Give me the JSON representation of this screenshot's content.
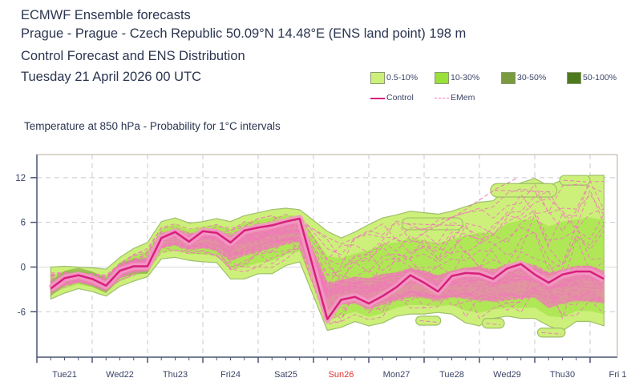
{
  "header": {
    "line1": "ECMWF Ensemble forecasts",
    "line2": "Prague - Prague - Czech Republic 50.09°N 14.48°E (ENS land point) 198 m",
    "line3": "Control Forecast and ENS Distribution",
    "line4": "Tuesday 21 April 2026 00 UTC"
  },
  "legend": {
    "bins": [
      {
        "label": "0.5-10%",
        "color": "#ccf07a"
      },
      {
        "label": "10-30%",
        "color": "#99e03a"
      },
      {
        "label": "30-50%",
        "color": "#7a9a40"
      },
      {
        "label": "50-100%",
        "color": "#4e7a1e"
      }
    ],
    "control_label": "Control",
    "control_color": "#d6217a",
    "emem_label": "EMem",
    "emem_color": "#f07ab8"
  },
  "chart_data": {
    "type": "line",
    "title": "Temperature at 850 hPa - Probability for 1°C intervals",
    "xlabel": "",
    "ylabel": "",
    "ylim": [
      -12.1,
      15.1
    ],
    "yticks": [
      12,
      6,
      0,
      -6
    ],
    "ytick_labels": [
      "12",
      "6",
      "0",
      "-6"
    ],
    "grid": true,
    "xlim_days": [
      0,
      10.35
    ],
    "day_labels": [
      "Tue21",
      "Wed22",
      "Thu23",
      "Fri24",
      "Sat25",
      "Sun26",
      "Mon27",
      "Tue28",
      "Wed29",
      "Thu30",
      "Fri 1"
    ],
    "weekend_label_color": "#e03030",
    "weekend_label_index": 5,
    "legend_position": "top-right",
    "x_hours_control": [
      0,
      6,
      12,
      18,
      24,
      30,
      36,
      42,
      48,
      54,
      60,
      66,
      72,
      78,
      84,
      90,
      96,
      102,
      108,
      120,
      126,
      132,
      138,
      144,
      150,
      156,
      162,
      168,
      174,
      180,
      186,
      192,
      198,
      204,
      210,
      216,
      222,
      228,
      234,
      240
    ],
    "series": [
      {
        "name": "Control",
        "values": [
          -2.9,
          -1.5,
          -1.1,
          -1.6,
          -2.5,
          -0.5,
          0.1,
          0.1,
          3.9,
          4.7,
          3.4,
          4.8,
          4.6,
          3.3,
          4.9,
          5.3,
          5.6,
          6.1,
          6.5,
          -7.0,
          -4.4,
          -4.0,
          -4.9,
          -3.9,
          -2.7,
          -1.1,
          -2.1,
          -3.3,
          -1.2,
          -0.8,
          -0.9,
          -1.6,
          -0.2,
          0.4,
          -1.0,
          -2.1,
          -1.0,
          -0.6,
          -0.6,
          -1.6
        ]
      },
      {
        "name": "ENS 0.5-10% envelope (min)",
        "values": [
          -4.0,
          -3.2,
          -2.6,
          -3.0,
          -3.6,
          -2.3,
          -1.6,
          -1.0,
          1.4,
          1.6,
          1.2,
          1.0,
          0.9,
          -1.3,
          -1.3,
          -0.6,
          -0.6,
          0.5,
          1.0,
          -8.2,
          -7.8,
          -7.0,
          -7.6,
          -7.2,
          -6.3,
          -6.0,
          -6.0,
          -5.8,
          -6.0,
          -7.2,
          -7.6,
          -6.6,
          -6.3,
          -6.6,
          -6.6,
          -7.6,
          -8.3,
          -7.0,
          -7.0,
          -7.6
        ]
      },
      {
        "name": "ENS 0.5-10% envelope (max)",
        "values": [
          -0.3,
          -0.2,
          -0.3,
          -0.4,
          -0.6,
          1.0,
          2.2,
          3.0,
          5.8,
          6.3,
          5.6,
          5.8,
          6.2,
          5.8,
          6.6,
          7.0,
          7.4,
          7.6,
          7.4,
          4.5,
          3.6,
          4.4,
          5.4,
          6.3,
          6.7,
          7.2,
          7.0,
          6.8,
          7.2,
          7.8,
          8.4,
          8.6,
          10.4,
          11.0,
          11.6,
          10.6,
          11.4,
          11.6,
          12.0,
          12.0
        ]
      },
      {
        "name": "ENS 50-100% core (min)",
        "values": [
          -3.4,
          -2.4,
          -2.0,
          -2.4,
          -3.2,
          -1.4,
          -0.6,
          -0.5,
          2.6,
          3.0,
          2.4,
          2.6,
          2.2,
          0.9,
          1.6,
          2.0,
          2.6,
          3.1,
          3.4,
          -6.0,
          -5.0,
          -4.8,
          -5.6,
          -5.0,
          -4.4,
          -4.0,
          -4.1,
          -4.6,
          -4.0,
          -4.2,
          -4.4,
          -4.6,
          -4.4,
          -4.2,
          -4.0,
          -5.4,
          -4.8,
          -4.6,
          -4.6,
          -4.8
        ]
      },
      {
        "name": "ENS 50-100% core (max)",
        "values": [
          -2.2,
          -1.1,
          -0.8,
          -1.1,
          -1.8,
          0.2,
          0.8,
          1.1,
          4.4,
          5.0,
          4.2,
          5.0,
          5.0,
          4.2,
          5.2,
          5.5,
          5.8,
          6.2,
          6.2,
          -2.2,
          -1.8,
          -1.4,
          -1.6,
          -1.0,
          -0.8,
          -0.2,
          -0.6,
          -1.2,
          -0.6,
          -0.1,
          0.0,
          -0.4,
          0.3,
          0.6,
          0.2,
          -0.8,
          -0.4,
          0.1,
          0.1,
          -0.6
        ]
      }
    ],
    "isolated_regions": [
      {
        "day_from": 6.6,
        "day_to": 7.7,
        "temp_from": 5.0,
        "temp_to": 6.6,
        "label": "upper cluster"
      },
      {
        "day_from": 8.2,
        "day_to": 9.4,
        "temp_from": 9.4,
        "temp_to": 11.2,
        "label": "upper cluster"
      },
      {
        "day_from": 9.45,
        "day_to": 10.0,
        "temp_from": 11.0,
        "temp_to": 12.3,
        "label": "upper cluster"
      },
      {
        "day_from": 8.05,
        "day_to": 8.45,
        "temp_from": -8.2,
        "temp_to": -6.9,
        "label": "lower cluster"
      },
      {
        "day_from": 9.05,
        "day_to": 9.55,
        "temp_from": -9.4,
        "temp_to": -8.2,
        "label": "lower cluster"
      },
      {
        "day_from": 6.85,
        "day_to": 7.3,
        "temp_from": -7.8,
        "temp_to": -6.6,
        "label": "lower cluster"
      }
    ]
  }
}
